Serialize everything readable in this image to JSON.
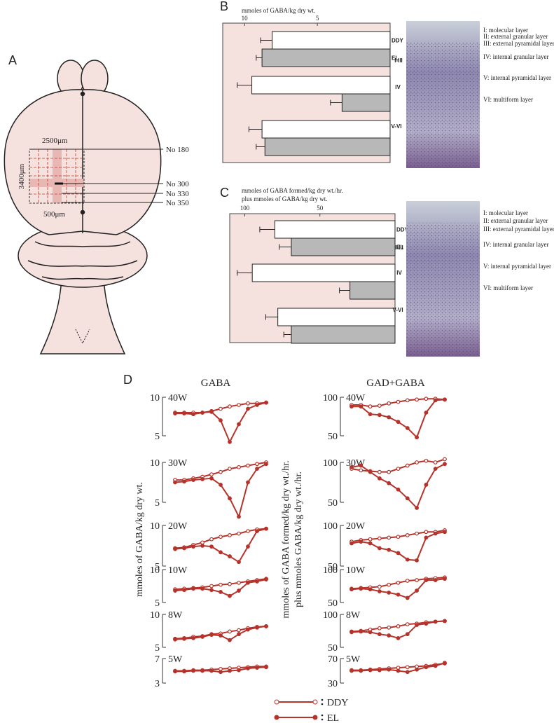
{
  "panel_a": {
    "label": "A",
    "width_label": "2500μm",
    "height_label": "3400μm",
    "strip_label": "500μm",
    "sections": [
      "No 180",
      "No 300",
      "No 330",
      "No 350"
    ]
  },
  "chart_data": [
    {
      "type": "bar",
      "orientation": "horizontal",
      "panel_label": "B",
      "x_label": [
        "mmoles of GABA/kg dry wt."
      ],
      "categories": [
        "I-III",
        "IV",
        "V-VI"
      ],
      "xlim": [
        11.5,
        0
      ],
      "xticks": [
        10,
        5
      ],
      "series": [
        {
          "name": "DDY",
          "color": "#ffffff",
          "values": [
            8.1,
            9.5,
            8.8
          ],
          "errors": [
            0.8,
            1.0,
            0.9
          ]
        },
        {
          "name": "EL",
          "color": "#b8b8b8",
          "values": [
            8.8,
            3.3,
            8.6
          ],
          "errors": [
            0.4,
            0.8,
            0.6
          ]
        }
      ],
      "layer_labels": [
        "I: molecular layer",
        "II: external granular layer",
        "III: external pyramidal layer",
        "IV: internal granular layer",
        "V: internal pyramidal layer",
        "VI: multiform layer"
      ]
    },
    {
      "type": "bar",
      "orientation": "horizontal",
      "panel_label": "C",
      "x_label": [
        "mmoles of GABA formed/kg dry wt./hr.",
        "plus mmoles of GABA/kg dry wt."
      ],
      "categories": [
        "I-III",
        "IV",
        "V-VI"
      ],
      "xlim": [
        110,
        0
      ],
      "xticks": [
        100,
        50
      ],
      "series": [
        {
          "name": "DDY",
          "color": "#ffffff",
          "values": [
            80,
            95,
            78
          ],
          "errors": [
            10,
            10,
            8
          ]
        },
        {
          "name": "EL",
          "color": "#b8b8b8",
          "values": [
            69,
            30,
            69
          ],
          "errors": [
            8,
            7,
            5
          ]
        }
      ],
      "layer_labels": [
        "I: molecular layer",
        "II: external granular layer",
        "III: external pyramidal layer",
        "IV: internal granular layer",
        "V: internal pyramidal layer",
        "VI: multiform layer"
      ]
    },
    {
      "type": "line",
      "label": "40W",
      "categories": [
        null,
        null,
        null,
        null,
        null,
        null,
        null,
        null,
        null,
        null,
        null
      ],
      "ylim": [
        5,
        10
      ],
      "yticks": [
        5,
        10
      ],
      "series": [
        {
          "color": "#b5332a",
          "marker": "open",
          "values": [
            8.0,
            8.0,
            8.0,
            8.0,
            8.2,
            8.5,
            8.8,
            9.0,
            9.2,
            9.2,
            9.3
          ]
        },
        {
          "color": "#b5332a",
          "marker": "filled",
          "values": [
            7.9,
            7.9,
            7.8,
            8.0,
            8.1,
            7.0,
            4.2,
            6.5,
            8.5,
            9.0,
            9.3
          ]
        }
      ]
    },
    {
      "type": "line",
      "label": "40W",
      "categories": [
        null,
        null,
        null,
        null,
        null,
        null,
        null,
        null,
        null,
        null,
        null
      ],
      "ylim": [
        50,
        100
      ],
      "yticks": [
        50,
        100
      ],
      "series": [
        {
          "color": "#b5332a",
          "marker": "open",
          "values": [
            90,
            90,
            88,
            89,
            92,
            94,
            96,
            97,
            98,
            98,
            97
          ]
        },
        {
          "color": "#b5332a",
          "marker": "filled",
          "values": [
            88,
            88,
            78,
            77,
            74,
            68,
            60,
            48,
            80,
            96,
            97
          ]
        }
      ]
    },
    {
      "type": "line",
      "label": "30W",
      "categories": [
        null,
        null,
        null,
        null,
        null,
        null,
        null,
        null,
        null,
        null,
        null
      ],
      "ylim": [
        5,
        10
      ],
      "yticks": [
        5,
        10
      ],
      "series": [
        {
          "color": "#b5332a",
          "marker": "open",
          "values": [
            7.8,
            7.8,
            8.0,
            8.2,
            8.5,
            8.8,
            9.2,
            9.4,
            9.6,
            9.8,
            10.0
          ]
        },
        {
          "color": "#b5332a",
          "marker": "filled",
          "values": [
            7.5,
            7.6,
            7.8,
            7.9,
            8.0,
            7.2,
            5.5,
            3.2,
            7.5,
            9.2,
            9.8
          ]
        }
      ]
    },
    {
      "type": "line",
      "label": "30W",
      "categories": [
        null,
        null,
        null,
        null,
        null,
        null,
        null,
        null,
        null,
        null,
        null
      ],
      "ylim": [
        50,
        100
      ],
      "yticks": [
        50,
        100
      ],
      "series": [
        {
          "color": "#b5332a",
          "marker": "open",
          "values": [
            92,
            90,
            89,
            88,
            88,
            92,
            96,
            100,
            102,
            100,
            104
          ]
        },
        {
          "color": "#b5332a",
          "marker": "filled",
          "values": [
            94,
            96,
            88,
            80,
            74,
            66,
            55,
            43,
            72,
            92,
            98
          ]
        }
      ]
    },
    {
      "type": "line",
      "label": "20W",
      "categories": [
        null,
        null,
        null,
        null,
        null,
        null,
        null,
        null,
        null,
        null,
        null
      ],
      "ylim": [
        5,
        10
      ],
      "yticks": [
        5,
        10
      ],
      "series": [
        {
          "color": "#b5332a",
          "marker": "open",
          "values": [
            7.2,
            7.3,
            7.6,
            7.9,
            8.3,
            8.6,
            8.8,
            9.0,
            9.3,
            9.5,
            9.6
          ]
        },
        {
          "color": "#b5332a",
          "marker": "filled",
          "values": [
            7.1,
            7.2,
            7.4,
            7.5,
            7.4,
            6.7,
            6.2,
            5.5,
            7.4,
            9.3,
            9.6
          ]
        }
      ]
    },
    {
      "type": "line",
      "label": "20W",
      "categories": [
        null,
        null,
        null,
        null,
        null,
        null,
        null,
        null,
        null,
        null,
        null
      ],
      "ylim": [
        50,
        100
      ],
      "yticks": [
        50,
        100
      ],
      "series": [
        {
          "color": "#b5332a",
          "marker": "open",
          "values": [
            80,
            82,
            83,
            84,
            85,
            86,
            88,
            90,
            92,
            92,
            94
          ]
        },
        {
          "color": "#b5332a",
          "marker": "filled",
          "values": [
            78,
            80,
            78,
            72,
            70,
            66,
            58,
            57,
            85,
            90,
            92
          ]
        }
      ]
    },
    {
      "type": "line",
      "label": "10W",
      "categories": [
        null,
        null,
        null,
        null,
        null,
        null,
        null,
        null,
        null,
        null,
        null
      ],
      "ylim": [
        5,
        10
      ],
      "yticks": [
        5,
        10
      ],
      "series": [
        {
          "color": "#b5332a",
          "marker": "open",
          "values": [
            7.0,
            7.1,
            7.2,
            7.3,
            7.5,
            7.7,
            7.8,
            8.0,
            8.2,
            8.4,
            8.6
          ]
        },
        {
          "color": "#b5332a",
          "marker": "filled",
          "values": [
            6.8,
            6.9,
            7.1,
            7.1,
            6.9,
            6.6,
            6.0,
            6.8,
            8.0,
            8.2,
            8.5
          ]
        }
      ]
    },
    {
      "type": "line",
      "label": "10W",
      "categories": [
        null,
        null,
        null,
        null,
        null,
        null,
        null,
        null,
        null,
        null,
        null
      ],
      "ylim": [
        50,
        100
      ],
      "yticks": [
        50,
        100
      ],
      "series": [
        {
          "color": "#b5332a",
          "marker": "open",
          "values": [
            71,
            72,
            73,
            74,
            77,
            80,
            83,
            84,
            86,
            87,
            88
          ]
        },
        {
          "color": "#b5332a",
          "marker": "filled",
          "values": [
            70,
            71,
            70,
            67,
            65,
            62,
            57,
            68,
            84,
            84,
            86
          ]
        }
      ]
    },
    {
      "type": "line",
      "label": "8W",
      "categories": [
        null,
        null,
        null,
        null,
        null,
        null,
        null,
        null,
        null,
        null,
        null
      ],
      "ylim": [
        5,
        10
      ],
      "yticks": [
        5,
        10
      ],
      "series": [
        {
          "color": "#b5332a",
          "marker": "open",
          "values": [
            6.3,
            6.4,
            6.6,
            6.7,
            7.0,
            7.1,
            7.4,
            7.6,
            7.9,
            8.1,
            8.2
          ]
        },
        {
          "color": "#b5332a",
          "marker": "filled",
          "values": [
            6.2,
            6.3,
            6.4,
            6.6,
            6.9,
            6.8,
            6.1,
            7.0,
            7.7,
            8.0,
            8.2
          ]
        }
      ]
    },
    {
      "type": "line",
      "label": "8W",
      "categories": [
        null,
        null,
        null,
        null,
        null,
        null,
        null,
        null,
        null,
        null,
        null
      ],
      "ylim": [
        50,
        100
      ],
      "yticks": [
        50,
        100
      ],
      "series": [
        {
          "color": "#b5332a",
          "marker": "open",
          "values": [
            74,
            75,
            77,
            79,
            80,
            82,
            85,
            86,
            88,
            89,
            90
          ]
        },
        {
          "color": "#b5332a",
          "marker": "filled",
          "values": [
            73,
            74,
            73,
            70,
            68,
            64,
            70,
            84,
            86,
            89,
            90
          ]
        }
      ]
    },
    {
      "type": "line",
      "label": "5W",
      "categories": [
        null,
        null,
        null,
        null,
        null,
        null,
        null,
        null,
        null,
        null,
        null
      ],
      "ylim": [
        3,
        7
      ],
      "yticks": [
        3,
        7
      ],
      "series": [
        {
          "color": "#b5332a",
          "marker": "open",
          "values": [
            5.0,
            5.0,
            5.1,
            5.1,
            5.2,
            5.3,
            5.4,
            5.5,
            5.6,
            5.7,
            5.7
          ]
        },
        {
          "color": "#b5332a",
          "marker": "filled",
          "values": [
            4.9,
            4.9,
            5.0,
            5.0,
            5.0,
            4.8,
            5.0,
            5.1,
            5.4,
            5.5,
            5.6
          ]
        }
      ]
    },
    {
      "type": "line",
      "label": "5W",
      "categories": [
        null,
        null,
        null,
        null,
        null,
        null,
        null,
        null,
        null,
        null,
        null
      ],
      "ylim": [
        30,
        70
      ],
      "yticks": [
        30,
        70
      ],
      "series": [
        {
          "color": "#b5332a",
          "marker": "open",
          "values": [
            51,
            51,
            52,
            53,
            54,
            55,
            56,
            57,
            58,
            60,
            62
          ]
        },
        {
          "color": "#b5332a",
          "marker": "filled",
          "values": [
            50,
            50,
            51,
            51,
            52,
            50,
            48,
            52,
            56,
            58,
            63
          ]
        }
      ]
    }
  ],
  "panel_d": {
    "label": "D",
    "column_titles": [
      "GABA",
      "GAD+GABA"
    ],
    "y_titles": [
      [
        "mmoles of GABA/kg dry wt."
      ],
      [
        "mmoles of GABA formed/kg dry wt./hr.",
        "plus mmoles GABA/kg dry wt./hr."
      ]
    ],
    "legend": [
      {
        "name": "DDY",
        "marker": "open",
        "color": "#b5332a"
      },
      {
        "name": "EL",
        "marker": "filled",
        "color": "#b5332a"
      }
    ]
  }
}
